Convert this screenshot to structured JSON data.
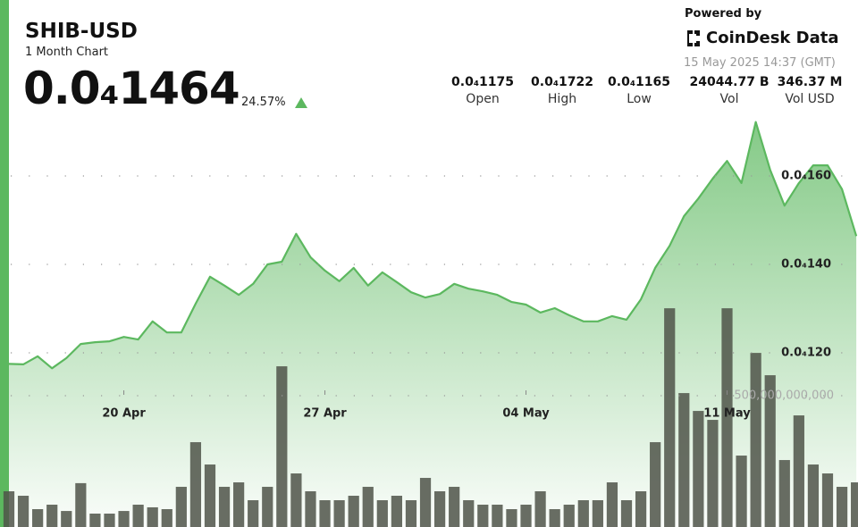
{
  "header": {
    "symbol": "SHIB-USD",
    "period": "1 Month Chart",
    "price": "0.0₄1464",
    "change": "24.57%",
    "powered_by": "Powered by",
    "brand": "CoinDesk Data",
    "timestamp": "15 May 2025 14:37 (GMT)"
  },
  "stats": [
    {
      "value": "0.0₄1175",
      "label": "Open"
    },
    {
      "value": "0.0₄1722",
      "label": "High"
    },
    {
      "value": "0.0₄1165",
      "label": "Low"
    },
    {
      "value": "24044.77 B",
      "label": "Vol"
    },
    {
      "value": "346.37 M",
      "label": "Vol USD"
    }
  ],
  "chart_data": {
    "type": "line",
    "categories": [
      null,
      null,
      null,
      null,
      null,
      null,
      null,
      null,
      "20 Apr",
      null,
      null,
      null,
      null,
      null,
      null,
      null,
      null,
      null,
      null,
      null,
      null,
      null,
      "27 Apr",
      null,
      null,
      null,
      null,
      null,
      null,
      null,
      null,
      null,
      null,
      null,
      null,
      null,
      "04 May",
      null,
      null,
      null,
      null,
      null,
      null,
      null,
      null,
      null,
      null,
      null,
      null,
      null,
      "11 May",
      null,
      null,
      null,
      null,
      null,
      null,
      null,
      null,
      null
    ],
    "series": [
      {
        "color": "#5cb85f",
        "values": [
          1.175e-05,
          1.174e-05,
          1.192e-05,
          1.165e-05,
          1.188e-05,
          1.22e-05,
          1.224e-05,
          1.226e-05,
          1.236e-05,
          1.23e-05,
          1.271e-05,
          1.246e-05,
          1.246e-05,
          1.311e-05,
          1.372e-05,
          1.352e-05,
          1.331e-05,
          1.356e-05,
          1.4e-05,
          1.406e-05,
          1.469e-05,
          1.416e-05,
          1.386e-05,
          1.362e-05,
          1.392e-05,
          1.352e-05,
          1.382e-05,
          1.36e-05,
          1.337e-05,
          1.325e-05,
          1.333e-05,
          1.356e-05,
          1.345e-05,
          1.339e-05,
          1.331e-05,
          1.315e-05,
          1.309e-05,
          1.291e-05,
          1.301e-05,
          1.285e-05,
          1.271e-05,
          1.271e-05,
          1.283e-05,
          1.275e-05,
          1.321e-05,
          1.392e-05,
          1.442e-05,
          1.509e-05,
          1.549e-05,
          1.594e-05,
          1.634e-05,
          1.584e-05,
          1.722e-05,
          1.614e-05,
          1.533e-05,
          1.584e-05,
          1.624e-05,
          1.624e-05,
          1.57e-05,
          1.464e-05
        ]
      },
      {
        "type": "bar",
        "axis": "y2",
        "color": "#4f5449",
        "values": [
          136000000000.0,
          119000000000.0,
          68000000000.0,
          85000000000.0,
          61000000000.0,
          167000000000.0,
          51000000000.0,
          51000000000.0,
          61000000000.0,
          85000000000.0,
          75000000000.0,
          68000000000.0,
          153000000000.0,
          323000000000.0,
          238000000000.0,
          153000000000.0,
          170000000000.0,
          102000000000.0,
          153000000000.0,
          612000000000.0,
          204000000000.0,
          136000000000.0,
          102000000000.0,
          102000000000.0,
          119000000000.0,
          153000000000.0,
          102000000000.0,
          119000000000.0,
          102000000000.0,
          187000000000.0,
          136000000000.0,
          153000000000.0,
          102000000000.0,
          85000000000.0,
          85000000000.0,
          68000000000.0,
          85000000000.0,
          136000000000.0,
          68000000000.0,
          85000000000.0,
          102000000000.0,
          102000000000.0,
          170000000000.0,
          102000000000.0,
          136000000000.0,
          323000000000.0,
          833000000000.0,
          510000000000.0,
          442000000000.0,
          408000000000.0,
          833000000000.0,
          272000000000.0,
          663000000000.0,
          578000000000.0,
          255000000000.0,
          425000000000.0,
          238000000000.0,
          204000000000.0,
          153000000000.0,
          170000000000.0
        ]
      }
    ],
    "ylim": [
      8.06e-06,
      1.998e-05
    ],
    "yticks": [
      {
        "value": 1.6e-05,
        "label": "0.0₄160"
      },
      {
        "value": 1.4e-05,
        "label": "0.0₄140"
      },
      {
        "value": 1.2e-05,
        "label": "0.0₄120"
      }
    ],
    "y2lim": [
      0,
      2007000000000.0
    ],
    "y2ticks": [
      {
        "value": 500000000000.0,
        "label": "500,000,000,000"
      }
    ],
    "grid": true
  }
}
